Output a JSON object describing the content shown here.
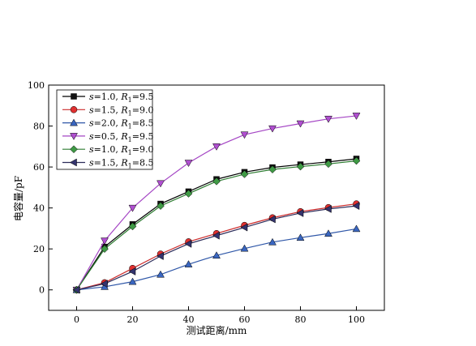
{
  "chart_data": {
    "type": "line",
    "title": "",
    "xlabel": "测试距离/mm",
    "ylabel": "电容量/pF",
    "xlim": [
      -10,
      110
    ],
    "ylim": [
      -10,
      100
    ],
    "xticks": [
      0,
      20,
      40,
      60,
      80,
      100
    ],
    "yticks": [
      0,
      20,
      40,
      60,
      80,
      100
    ],
    "legend_position": "top-left",
    "x": [
      0,
      10,
      20,
      30,
      40,
      50,
      60,
      70,
      80,
      90,
      100
    ],
    "series": [
      {
        "name": "s=1.0, R1=9.5",
        "label_parts": {
          "s": "1.0",
          "r": "9.5"
        },
        "marker": "square",
        "color": "#000000",
        "marker_color": "#111111",
        "values": [
          0,
          21,
          32,
          42,
          48,
          54,
          57.5,
          59.8,
          61.2,
          62.5,
          64
        ]
      },
      {
        "name": "s=1.5, R1=9.0",
        "label_parts": {
          "s": "1.5",
          "r": "9.0"
        },
        "marker": "circle",
        "color": "#cc2b2b",
        "marker_color": "#e03030",
        "values": [
          0,
          3.5,
          10.5,
          17.5,
          23.5,
          27.5,
          31.5,
          35.2,
          38.2,
          40.2,
          42
        ]
      },
      {
        "name": "s=2.0, R1=8.5",
        "label_parts": {
          "s": "2.0",
          "r": "8.5"
        },
        "marker": "triangle-up",
        "color": "#2f57a8",
        "marker_color": "#3a66c0",
        "values": [
          0,
          1.5,
          4,
          7.5,
          12.5,
          16.8,
          20.2,
          23.3,
          25.5,
          27.5,
          29.8
        ]
      },
      {
        "name": "s=0.5, R1=9.5",
        "label_parts": {
          "s": "0.5",
          "r": "9.5"
        },
        "marker": "triangle-down",
        "color": "#a445c4",
        "marker_color": "#b04fd0",
        "values": [
          0,
          24,
          40,
          52,
          62,
          70,
          75.8,
          78.8,
          81.2,
          83.5,
          85
        ]
      },
      {
        "name": "s=1.0, R1=9.0",
        "label_parts": {
          "s": "1.0",
          "r": "9.0"
        },
        "marker": "diamond",
        "color": "#2e7d32",
        "marker_color": "#3f9a45",
        "values": [
          0,
          20,
          31,
          41,
          47,
          53,
          56.5,
          58.8,
          60.2,
          61.5,
          63
        ]
      },
      {
        "name": "s=1.5, R1=8.5",
        "label_parts": {
          "s": "1.5",
          "r": "8.5"
        },
        "marker": "triangle-left",
        "color": "#2c2c5a",
        "marker_color": "#34346e",
        "values": [
          0,
          3,
          9,
          16.5,
          22.5,
          26.5,
          30.5,
          34.5,
          37.5,
          39.5,
          41
        ]
      }
    ]
  }
}
